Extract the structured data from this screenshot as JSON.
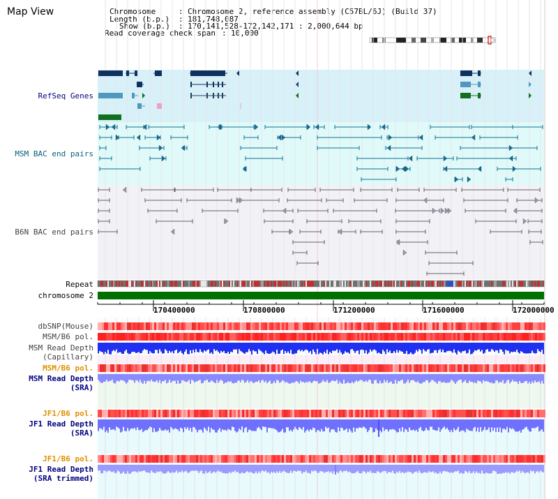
{
  "title": "Map View",
  "info": {
    "chromosome_key": "Chromosome",
    "chromosome_value": "Chromosome 2, reference assembly (C57BL/6J) (Build 37)",
    "length_key": "Length (b.p.)",
    "length_value": "181,748,087",
    "show_key": "Show (b.p.)",
    "show_value": "170,141,528-172,142,171 : 2,000,644 bp",
    "coverage_key": "Read coverage check span",
    "coverage_value": "10,000"
  },
  "tracks": {
    "refseq": "RefSeq Genes",
    "msm_bac": "MSM BAC end pairs",
    "b6n_bac": "B6N BAC end pairs",
    "repeat": "Repeat",
    "chromosome": "chromosome 2",
    "dbsnp": "dbSNP(Mouse)",
    "msm_b6_pol": "MSM/B6 pol.",
    "msm_depth_cap_1": "MSM Read Depth",
    "msm_depth_cap_2": "(Capillary)",
    "msm_b6_pol_2": "MSM/B6 pol.",
    "msm_depth_sra_1": "MSM Read Depth",
    "msm_depth_sra_2": "(SRA)",
    "jf1_b6_pol": "JF1/B6 pol.",
    "jf1_depth_sra_1": "JF1 Read Depth",
    "jf1_depth_sra_2": "(SRA)",
    "jf1_b6_pol_2": "JF1/B6 pol.",
    "jf1_depth_trim_1": "JF1 Read Depth",
    "jf1_depth_trim_2": "(SRA trimmed)"
  },
  "ruler": {
    "ticks": [
      "170400000",
      "170800000",
      "171200000",
      "171600000",
      "172000000"
    ]
  },
  "colors": {
    "refseq_bg": "#d8f0f8",
    "msm_bac_bg": "#e0fafa",
    "b6n_bac_bg": "#f2f2f6",
    "chromosome_bar": "#007000",
    "snp_red": "#ff4040",
    "depth_blue": "#1a1aff",
    "depth_violet": "#8080ff",
    "label_blue": "#000080",
    "label_orange": "#e09000"
  }
}
